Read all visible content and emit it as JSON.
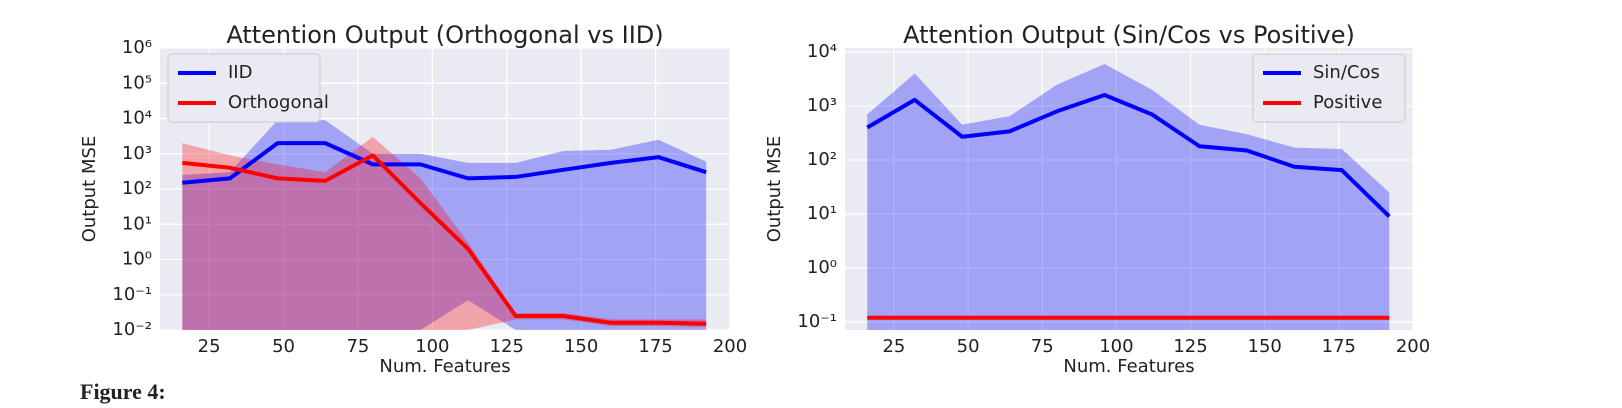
{
  "chart_data": [
    {
      "type": "line",
      "title": "Attention Output (Orthogonal vs IID)",
      "x_label": "Num. Features",
      "y_label": "Output MSE",
      "log_y": true,
      "grid": true,
      "legend": "upper left",
      "xlim": [
        8.5,
        200
      ],
      "xticks": [
        25,
        50,
        75,
        100,
        125,
        150,
        175,
        200
      ],
      "ylim": [
        0.01,
        1000000
      ],
      "yticks": [
        {
          "value": 0.01,
          "label": "10⁻²"
        },
        {
          "value": 0.1,
          "label": "10⁻¹"
        },
        {
          "value": 1,
          "label": "10⁰"
        },
        {
          "value": 10,
          "label": "10¹"
        },
        {
          "value": 100,
          "label": "10²"
        },
        {
          "value": 1000,
          "label": "10³"
        },
        {
          "value": 10000,
          "label": "10⁴"
        },
        {
          "value": 100000,
          "label": "10⁵"
        },
        {
          "value": 1000000,
          "label": "10⁶"
        }
      ],
      "x": [
        16,
        32,
        48,
        64,
        80,
        96,
        112,
        128,
        144,
        160,
        176,
        192
      ],
      "series": [
        {
          "name": "IID",
          "color": "#0000ff",
          "values": [
            150,
            200,
            2000,
            2000,
            500,
            500,
            200,
            220,
            350,
            550,
            800,
            300
          ],
          "band_upper": [
            250,
            300,
            9000,
            9000,
            1000,
            1000,
            550,
            550,
            1200,
            1300,
            2500,
            600
          ],
          "band_lower": [
            0.01,
            0.01,
            0.01,
            0.01,
            0.01,
            0.01,
            0.07,
            0.01,
            0.01,
            0.01,
            0.01,
            0.01
          ]
        },
        {
          "name": "Orthogonal",
          "color": "#ff0000",
          "values": [
            550,
            400,
            200,
            170,
            900,
            40,
            2,
            0.025,
            0.025,
            0.016,
            0.016,
            0.015
          ],
          "band_upper": [
            2000,
            900,
            500,
            300,
            3000,
            200,
            3,
            0.03,
            0.03,
            0.02,
            0.02,
            0.02
          ],
          "band_lower": [
            0.01,
            0.01,
            0.01,
            0.01,
            0.01,
            0.01,
            0.01,
            0.02,
            0.02,
            0.013,
            0.013,
            0.012
          ]
        }
      ]
    },
    {
      "type": "line",
      "title": "Attention Output (Sin/Cos vs Positive)",
      "x_label": "Num. Features",
      "y_label": "Output MSE",
      "log_y": true,
      "grid": true,
      "legend": "upper right",
      "xlim": [
        8.5,
        200
      ],
      "xticks": [
        25,
        50,
        75,
        100,
        125,
        150,
        175,
        200
      ],
      "ylim": [
        0.071,
        11900
      ],
      "yticks": [
        {
          "value": 0.1,
          "label": "10⁻¹"
        },
        {
          "value": 1,
          "label": "10⁰"
        },
        {
          "value": 10,
          "label": "10¹"
        },
        {
          "value": 100,
          "label": "10²"
        },
        {
          "value": 1000,
          "label": "10³"
        },
        {
          "value": 10000,
          "label": "10⁴"
        }
      ],
      "x": [
        16,
        32,
        48,
        64,
        80,
        96,
        112,
        128,
        144,
        160,
        176,
        192
      ],
      "series": [
        {
          "name": "Sin/Cos",
          "color": "#0000ff",
          "values": [
            400,
            1300,
            270,
            340,
            800,
            1600,
            700,
            180,
            150,
            75,
            65,
            9
          ],
          "band_upper": [
            700,
            4000,
            450,
            650,
            2500,
            6000,
            2000,
            450,
            300,
            170,
            160,
            25
          ],
          "band_lower": [
            0.071,
            0.071,
            0.071,
            0.071,
            0.071,
            0.071,
            0.071,
            0.071,
            0.071,
            0.071,
            0.071,
            0.071
          ]
        },
        {
          "name": "Positive",
          "color": "#ff0000",
          "values": [
            0.12,
            0.12,
            0.12,
            0.12,
            0.12,
            0.12,
            0.12,
            0.12,
            0.12,
            0.12,
            0.12,
            0.12
          ]
        }
      ]
    }
  ],
  "caption": "Figure 4:"
}
